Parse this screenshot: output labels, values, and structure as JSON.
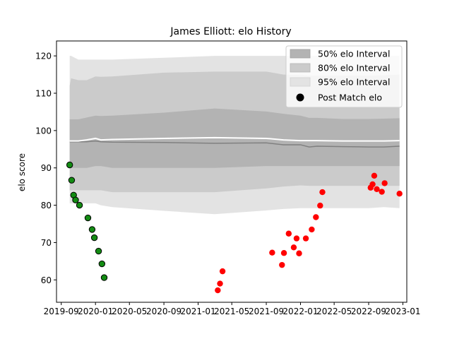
{
  "chart_data": {
    "type": "line",
    "title": "James Elliott: elo History",
    "xlabel": "",
    "ylabel": "elo score",
    "x_ticks": [
      "2019-09",
      "2020-01",
      "2020-05",
      "2020-09",
      "2021-01",
      "2021-05",
      "2021-09",
      "2022-01",
      "2022-05",
      "2022-09",
      "2023-01"
    ],
    "y_ticks": [
      60,
      70,
      80,
      90,
      100,
      110,
      120
    ],
    "xlim": [
      "2019-08-15",
      "2023-01-15"
    ],
    "ylim": [
      54,
      124
    ],
    "grid": false,
    "legend_position": "top-right",
    "legend": {
      "i50": "50% elo Interval",
      "i80": "80% elo Interval",
      "i95": "95% elo Interval",
      "post": "Post Match elo"
    },
    "colors": {
      "band50": "#b3b3b3",
      "band80": "#cbcbcb",
      "band95": "#e3e3e3",
      "median": "#808080",
      "mean": "#ffffff",
      "green": "#138b13",
      "red": "#ff0000"
    },
    "bands": {
      "x": [
        "2019-10-01",
        "2019-10-06",
        "2019-11-01",
        "2019-12-01",
        "2020-01-01",
        "2020-01-20",
        "2020-03-01",
        "2020-09-01",
        "2021-03-01",
        "2021-09-01",
        "2021-11-01",
        "2022-01-01",
        "2022-02-01",
        "2022-03-01",
        "2022-06-01",
        "2022-09-01",
        "2022-10-25",
        "2022-12-20"
      ],
      "q2_5": [
        80.5,
        80.5,
        80.5,
        80.5,
        80.5,
        80.0,
        79.5,
        78.5,
        77.6,
        78.6,
        79.0,
        79.2,
        79.2,
        79.2,
        79.2,
        79.2,
        79.5,
        79.2
      ],
      "q10": [
        84.0,
        84.0,
        84.0,
        84.0,
        84.0,
        84.0,
        83.5,
        83.5,
        83.5,
        84.5,
        85.0,
        85.3,
        85.2,
        85.2,
        85.2,
        85.2,
        85.2,
        85.2
      ],
      "q25": [
        90.0,
        90.0,
        90.0,
        90.0,
        90.5,
        90.5,
        90.0,
        90.0,
        90.0,
        90.5,
        90.5,
        90.5,
        90.5,
        90.5,
        90.5,
        90.5,
        90.5,
        90.5
      ],
      "median": [
        97.0,
        97.0,
        97.0,
        97.0,
        97.2,
        97.0,
        96.9,
        96.8,
        96.6,
        96.7,
        96.2,
        96.2,
        95.6,
        95.8,
        95.7,
        95.6,
        95.6,
        95.8
      ],
      "mean": [
        97.2,
        97.2,
        97.2,
        97.5,
        97.9,
        97.5,
        97.6,
        97.9,
        98.1,
        97.9,
        97.5,
        97.3,
        97.3,
        97.3,
        97.2,
        97.2,
        97.2,
        97.3
      ],
      "q75": [
        103.0,
        103.0,
        103.0,
        103.5,
        104.0,
        103.9,
        104.0,
        104.8,
        105.9,
        105.1,
        104.5,
        104.0,
        103.4,
        103.4,
        103.1,
        103.1,
        103.2,
        103.3
      ],
      "q90": [
        112.0,
        114.0,
        113.5,
        113.5,
        114.5,
        114.4,
        114.5,
        115.5,
        115.8,
        115.8,
        115.0,
        114.9,
        114.7,
        114.7,
        114.7,
        114.7,
        114.8,
        115.0
      ],
      "q97_5": [
        120.0,
        120.0,
        119.0,
        119.0,
        119.0,
        119.0,
        119.0,
        119.5,
        120.0,
        120.0,
        120.0,
        120.0,
        120.0,
        120.0,
        120.0,
        120.0,
        120.0,
        120.0
      ]
    },
    "series": [
      {
        "name": "Post Match elo",
        "color_key": "green",
        "points": [
          [
            "2019-10-01",
            90.8
          ],
          [
            "2019-10-08",
            86.7
          ],
          [
            "2019-10-15",
            82.7
          ],
          [
            "2019-10-22",
            81.4
          ],
          [
            "2019-11-05",
            80.0
          ],
          [
            "2019-12-05",
            76.6
          ],
          [
            "2019-12-20",
            73.5
          ],
          [
            "2019-12-28",
            71.3
          ],
          [
            "2020-01-12",
            67.7
          ],
          [
            "2020-01-24",
            64.3
          ],
          [
            "2020-02-01",
            60.6
          ]
        ]
      },
      {
        "name": "",
        "color_key": "red",
        "points": [
          [
            "2021-03-12",
            57.2
          ],
          [
            "2021-03-20",
            59.0
          ],
          [
            "2021-03-29",
            62.3
          ],
          [
            "2021-09-22",
            67.3
          ],
          [
            "2021-10-27",
            64.0
          ],
          [
            "2021-11-03",
            67.2
          ],
          [
            "2021-11-20",
            72.4
          ],
          [
            "2021-12-08",
            68.7
          ],
          [
            "2021-12-18",
            71.1
          ],
          [
            "2021-12-27",
            67.1
          ],
          [
            "2022-01-20",
            71.1
          ],
          [
            "2022-02-10",
            73.5
          ],
          [
            "2022-02-25",
            76.8
          ],
          [
            "2022-03-12",
            79.9
          ],
          [
            "2022-03-20",
            83.5
          ],
          [
            "2022-09-08",
            84.7
          ],
          [
            "2022-09-15",
            85.6
          ],
          [
            "2022-09-21",
            87.9
          ],
          [
            "2022-09-30",
            84.3
          ],
          [
            "2022-10-18",
            83.6
          ],
          [
            "2022-10-28",
            85.9
          ],
          [
            "2022-12-20",
            83.1
          ]
        ]
      }
    ]
  }
}
